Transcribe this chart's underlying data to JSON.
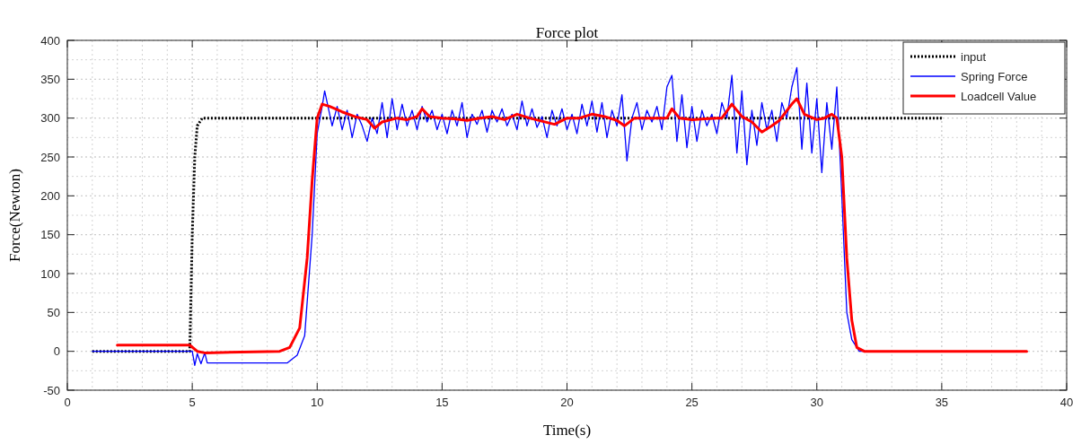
{
  "chart_data": {
    "type": "line",
    "title": "Force plot",
    "xlabel": "Time(s)",
    "ylabel": "Force(Newton)",
    "xlim": [
      0,
      40
    ],
    "ylim": [
      -50,
      400
    ],
    "xticks": [
      0,
      5,
      10,
      15,
      20,
      25,
      30,
      35,
      40
    ],
    "yticks": [
      -50,
      0,
      50,
      100,
      150,
      200,
      250,
      300,
      350,
      400
    ],
    "grid": true,
    "legend": "top right",
    "series": [
      {
        "name": "input",
        "color": "#000000",
        "line_style": "dotted",
        "x": [
          1,
          4.9,
          5.0,
          5.1,
          5.2,
          5.4,
          35
        ],
        "values": [
          0,
          0,
          150,
          250,
          290,
          300,
          300
        ]
      },
      {
        "name": "Spring Force",
        "color": "#0000ff",
        "line_style": "solid",
        "x": [
          1,
          4.9,
          5.0,
          5.1,
          5.2,
          5.35,
          5.5,
          5.6,
          8.8,
          9.0,
          9.2,
          9.5,
          9.8,
          10.0,
          10.2,
          10.3,
          10.4,
          10.6,
          10.8,
          11.0,
          11.2,
          11.4,
          11.6,
          11.8,
          12.0,
          12.2,
          12.4,
          12.6,
          12.8,
          13.0,
          13.2,
          13.4,
          13.6,
          13.8,
          14.0,
          14.2,
          14.4,
          14.6,
          14.8,
          15.0,
          15.2,
          15.4,
          15.6,
          15.8,
          16.0,
          16.2,
          16.4,
          16.6,
          16.8,
          17.0,
          17.2,
          17.4,
          17.6,
          17.8,
          18.0,
          18.2,
          18.4,
          18.6,
          18.8,
          19.0,
          19.2,
          19.4,
          19.6,
          19.8,
          20.0,
          20.2,
          20.4,
          20.6,
          20.8,
          21.0,
          21.2,
          21.4,
          21.6,
          21.8,
          22.0,
          22.2,
          22.4,
          22.6,
          22.8,
          23.0,
          23.2,
          23.4,
          23.6,
          23.8,
          24.0,
          24.2,
          24.4,
          24.6,
          24.8,
          25.0,
          25.2,
          25.4,
          25.6,
          25.8,
          26.0,
          26.2,
          26.4,
          26.6,
          26.8,
          27.0,
          27.2,
          27.4,
          27.6,
          27.8,
          28.0,
          28.2,
          28.4,
          28.6,
          28.8,
          29.0,
          29.2,
          29.4,
          29.6,
          29.8,
          30.0,
          30.2,
          30.4,
          30.6,
          30.8,
          31.0,
          31.2,
          31.4,
          31.7,
          38.4
        ],
        "values": [
          0,
          0,
          0,
          -18,
          -3,
          -16,
          -2,
          -15,
          -15,
          -10,
          -5,
          20,
          150,
          280,
          315,
          335,
          320,
          290,
          315,
          285,
          310,
          275,
          305,
          290,
          270,
          300,
          280,
          320,
          275,
          325,
          285,
          318,
          290,
          310,
          285,
          315,
          295,
          310,
          285,
          305,
          280,
          310,
          290,
          320,
          275,
          305,
          292,
          310,
          282,
          310,
          295,
          312,
          290,
          305,
          285,
          322,
          290,
          312,
          288,
          302,
          275,
          310,
          290,
          312,
          285,
          305,
          280,
          318,
          290,
          322,
          282,
          320,
          275,
          310,
          290,
          330,
          245,
          300,
          320,
          285,
          310,
          295,
          315,
          285,
          340,
          355,
          270,
          330,
          262,
          315,
          270,
          310,
          290,
          305,
          280,
          320,
          300,
          355,
          255,
          335,
          240,
          310,
          265,
          320,
          285,
          310,
          270,
          320,
          300,
          340,
          365,
          260,
          345,
          255,
          325,
          230,
          320,
          260,
          340,
          200,
          50,
          15,
          0,
          0
        ]
      },
      {
        "name": "Loadcell Value",
        "color": "#ff0000",
        "line_style": "solid",
        "x": [
          2,
          4.9,
          5.2,
          5.5,
          8.5,
          8.9,
          9.3,
          9.6,
          9.8,
          10.0,
          10.2,
          10.5,
          11,
          11.5,
          12,
          12.3,
          12.6,
          13.2,
          13.6,
          14,
          14.2,
          14.5,
          15,
          15.5,
          16,
          16.5,
          17,
          17.5,
          18,
          18.5,
          19,
          19.5,
          20,
          20.5,
          21,
          21.5,
          22,
          22.3,
          22.7,
          23,
          23.5,
          24,
          24.2,
          24.5,
          25,
          25.5,
          26,
          26.2,
          26.6,
          27,
          27.4,
          27.8,
          28.2,
          28.5,
          29,
          29.2,
          29.5,
          30,
          30.3,
          30.6,
          30.8,
          31.0,
          31.2,
          31.4,
          31.6,
          31.9,
          38.4
        ],
        "values": [
          8,
          8,
          0,
          -2,
          0,
          5,
          30,
          120,
          220,
          300,
          318,
          315,
          308,
          302,
          298,
          287,
          295,
          300,
          298,
          302,
          312,
          302,
          300,
          299,
          297,
          300,
          302,
          298,
          305,
          300,
          296,
          292,
          300,
          300,
          305,
          302,
          297,
          290,
          300,
          300,
          300,
          300,
          312,
          300,
          298,
          299,
          300,
          300,
          318,
          302,
          295,
          282,
          290,
          297,
          318,
          325,
          305,
          298,
          300,
          305,
          300,
          250,
          120,
          40,
          5,
          0,
          0
        ]
      }
    ]
  }
}
